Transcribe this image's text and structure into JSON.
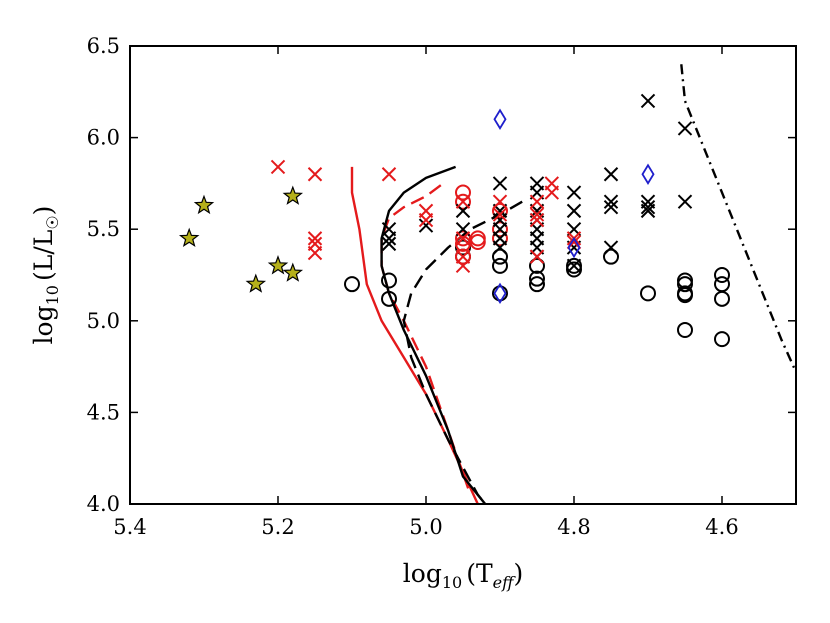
{
  "chart_data": {
    "type": "scatter",
    "title": "",
    "xlabel": {
      "base": "log",
      "sub": "10",
      "arg": "(T",
      "arg_sub": "eff",
      "close": ")"
    },
    "ylabel": {
      "base": "log",
      "sub": "10",
      "arg": "(L/L",
      "arg_sub": "☉",
      "close": ")"
    },
    "xlim": [
      5.4,
      4.5
    ],
    "ylim": [
      4.0,
      6.5
    ],
    "x_ticks": [
      {
        "value": 5.4,
        "label": "5.4"
      },
      {
        "value": 5.2,
        "label": "5.2"
      },
      {
        "value": 5.0,
        "label": "5.0"
      },
      {
        "value": 4.8,
        "label": "4.8"
      },
      {
        "value": 4.6,
        "label": "4.6"
      }
    ],
    "y_ticks": [
      {
        "value": 4.0,
        "label": "4.0"
      },
      {
        "value": 4.5,
        "label": "4.5"
      },
      {
        "value": 5.0,
        "label": "5.0"
      },
      {
        "value": 5.5,
        "label": "5.5"
      },
      {
        "value": 6.0,
        "label": "6.0"
      },
      {
        "value": 6.5,
        "label": "6.5"
      }
    ],
    "colors": {
      "black": "#000000",
      "red": "#e41a1c",
      "blue": "#1f1fcc",
      "star": "#b5b01a"
    },
    "series": [
      {
        "name": "black-circles",
        "marker": "circle",
        "color": "#000000",
        "points": [
          [
            5.1,
            5.2
          ],
          [
            5.05,
            5.22
          ],
          [
            5.05,
            5.12
          ],
          [
            4.95,
            5.35
          ],
          [
            4.95,
            5.4
          ],
          [
            4.9,
            5.3
          ],
          [
            4.9,
            5.35
          ],
          [
            4.9,
            5.15
          ],
          [
            4.85,
            5.3
          ],
          [
            4.85,
            5.23
          ],
          [
            4.85,
            5.2
          ],
          [
            4.8,
            5.28
          ],
          [
            4.8,
            5.3
          ],
          [
            4.75,
            5.35
          ],
          [
            4.7,
            5.15
          ],
          [
            4.65,
            5.22
          ],
          [
            4.65,
            5.2
          ],
          [
            4.65,
            5.15
          ],
          [
            4.65,
            5.14
          ],
          [
            4.65,
            4.95
          ],
          [
            4.6,
            5.25
          ],
          [
            4.6,
            5.2
          ],
          [
            4.6,
            5.12
          ],
          [
            4.6,
            4.9
          ]
        ]
      },
      {
        "name": "red-circles",
        "marker": "circle",
        "color": "#e41a1c",
        "points": [
          [
            4.95,
            5.7
          ],
          [
            4.95,
            5.65
          ],
          [
            4.95,
            5.45
          ],
          [
            4.95,
            5.42
          ],
          [
            4.95,
            5.35
          ],
          [
            4.93,
            5.45
          ],
          [
            4.93,
            5.43
          ],
          [
            4.9,
            5.5
          ],
          [
            4.9,
            5.45
          ],
          [
            4.9,
            5.6
          ]
        ]
      },
      {
        "name": "black-crosses",
        "marker": "x",
        "color": "#000000",
        "points": [
          [
            5.05,
            5.5
          ],
          [
            5.05,
            5.45
          ],
          [
            5.05,
            5.42
          ],
          [
            5.0,
            5.52
          ],
          [
            4.95,
            5.6
          ],
          [
            4.95,
            5.5
          ],
          [
            4.9,
            5.75
          ],
          [
            4.9,
            5.6
          ],
          [
            4.9,
            5.55
          ],
          [
            4.9,
            5.5
          ],
          [
            4.9,
            5.45
          ],
          [
            4.9,
            5.4
          ],
          [
            4.85,
            5.75
          ],
          [
            4.85,
            5.7
          ],
          [
            4.85,
            5.6
          ],
          [
            4.85,
            5.55
          ],
          [
            4.85,
            5.5
          ],
          [
            4.85,
            5.45
          ],
          [
            4.85,
            5.4
          ],
          [
            4.85,
            5.35
          ],
          [
            4.8,
            5.7
          ],
          [
            4.8,
            5.6
          ],
          [
            4.8,
            5.5
          ],
          [
            4.8,
            5.4
          ],
          [
            4.8,
            5.3
          ],
          [
            4.75,
            5.8
          ],
          [
            4.75,
            5.65
          ],
          [
            4.75,
            5.62
          ],
          [
            4.75,
            5.4
          ],
          [
            4.7,
            6.2
          ],
          [
            4.7,
            5.65
          ],
          [
            4.7,
            5.62
          ],
          [
            4.7,
            5.6
          ],
          [
            4.65,
            6.05
          ],
          [
            4.65,
            5.65
          ]
        ]
      },
      {
        "name": "red-crosses",
        "marker": "x",
        "color": "#e41a1c",
        "points": [
          [
            5.2,
            5.84
          ],
          [
            5.15,
            5.8
          ],
          [
            5.15,
            5.45
          ],
          [
            5.15,
            5.42
          ],
          [
            5.15,
            5.37
          ],
          [
            5.05,
            5.8
          ],
          [
            5.0,
            5.6
          ],
          [
            5.0,
            5.55
          ],
          [
            4.95,
            5.65
          ],
          [
            4.95,
            5.45
          ],
          [
            4.95,
            5.35
          ],
          [
            4.95,
            5.3
          ],
          [
            4.9,
            5.65
          ],
          [
            4.9,
            5.58
          ],
          [
            4.85,
            5.65
          ],
          [
            4.85,
            5.58
          ],
          [
            4.85,
            5.55
          ],
          [
            4.85,
            5.35
          ],
          [
            4.83,
            5.75
          ],
          [
            4.83,
            5.7
          ],
          [
            4.8,
            5.45
          ],
          [
            4.8,
            5.43
          ]
        ]
      },
      {
        "name": "blue-diamonds",
        "marker": "diamond",
        "color": "#1f1fcc",
        "points": [
          [
            4.9,
            6.1
          ],
          [
            4.9,
            5.15
          ],
          [
            4.8,
            5.4
          ],
          [
            4.7,
            5.8
          ]
        ]
      },
      {
        "name": "yellow-stars",
        "marker": "star",
        "color": "#b5b01a",
        "points": [
          [
            5.32,
            5.45
          ],
          [
            5.3,
            5.63
          ],
          [
            5.23,
            5.2
          ],
          [
            5.2,
            5.3
          ],
          [
            5.18,
            5.68
          ],
          [
            5.18,
            5.26
          ]
        ]
      }
    ],
    "lines": [
      {
        "name": "red-solid-track",
        "color": "#e41a1c",
        "style": "solid",
        "points": [
          [
            5.1,
            5.84
          ],
          [
            5.1,
            5.7
          ],
          [
            5.09,
            5.5
          ],
          [
            5.08,
            5.2
          ],
          [
            5.06,
            5.0
          ],
          [
            5.03,
            4.8
          ],
          [
            5.0,
            4.6
          ],
          [
            4.97,
            4.35
          ],
          [
            4.93,
            4.0
          ]
        ]
      },
      {
        "name": "red-dashed-track",
        "color": "#e41a1c",
        "style": "dashed",
        "points": [
          [
            4.98,
            5.74
          ],
          [
            5.0,
            5.68
          ],
          [
            5.03,
            5.62
          ],
          [
            5.05,
            5.56
          ],
          [
            5.06,
            5.45
          ],
          [
            5.06,
            5.3
          ],
          [
            5.05,
            5.15
          ],
          [
            5.03,
            5.0
          ],
          [
            5.0,
            4.75
          ],
          [
            4.97,
            4.4
          ],
          [
            4.94,
            4.05
          ]
        ]
      },
      {
        "name": "black-solid-track",
        "color": "#000000",
        "style": "solid",
        "points": [
          [
            4.96,
            5.84
          ],
          [
            5.0,
            5.78
          ],
          [
            5.03,
            5.7
          ],
          [
            5.05,
            5.6
          ],
          [
            5.06,
            5.45
          ],
          [
            5.06,
            5.3
          ],
          [
            5.05,
            5.15
          ],
          [
            5.03,
            4.95
          ],
          [
            5.0,
            4.7
          ],
          [
            4.97,
            4.4
          ],
          [
            4.95,
            4.15
          ],
          [
            4.92,
            4.0
          ]
        ]
      },
      {
        "name": "black-dashed-track",
        "color": "#000000",
        "style": "dashed",
        "points": [
          [
            4.87,
            5.65
          ],
          [
            4.9,
            5.58
          ],
          [
            4.94,
            5.5
          ],
          [
            4.97,
            5.4
          ],
          [
            5.0,
            5.28
          ],
          [
            5.02,
            5.15
          ],
          [
            5.03,
            5.0
          ],
          [
            5.02,
            4.8
          ],
          [
            5.0,
            4.6
          ],
          [
            4.97,
            4.35
          ],
          [
            4.93,
            4.05
          ],
          [
            4.92,
            4.0
          ]
        ]
      },
      {
        "name": "black-dashdot-line",
        "color": "#000000",
        "style": "dashdot",
        "points": [
          [
            4.655,
            6.4
          ],
          [
            4.65,
            6.2
          ],
          [
            4.63,
            6.0
          ],
          [
            4.6,
            5.7
          ],
          [
            4.57,
            5.4
          ],
          [
            4.54,
            5.1
          ],
          [
            4.52,
            4.9
          ],
          [
            4.5,
            4.72
          ]
        ]
      }
    ]
  }
}
